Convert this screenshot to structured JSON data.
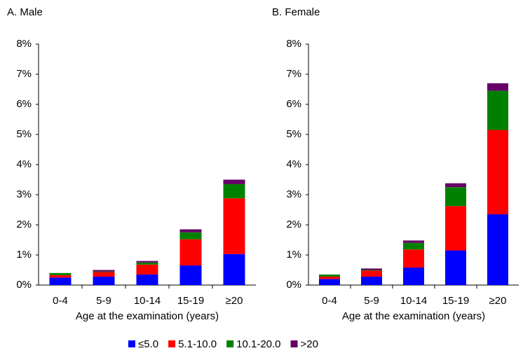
{
  "chart_data": [
    {
      "type": "stacked_bar",
      "title": "A. Male",
      "x_label": "Age at the examination (years)",
      "categories": [
        "0-4",
        "5-9",
        "10-14",
        "15-19",
        "≥20"
      ],
      "series": [
        {
          "values": [
            0.25,
            0.28,
            0.35,
            0.65,
            1.03
          ]
        },
        {
          "values": [
            0.08,
            0.15,
            0.33,
            0.87,
            1.85
          ]
        },
        {
          "values": [
            0.07,
            0.02,
            0.07,
            0.23,
            0.47
          ]
        },
        {
          "values": [
            0,
            0.05,
            0.05,
            0.1,
            0.15
          ]
        }
      ],
      "ylim": [
        0,
        8
      ],
      "yticks": [
        {
          "value": 0,
          "label": "0%"
        },
        {
          "value": 1,
          "label": "1%"
        },
        {
          "value": 2,
          "label": "2%"
        },
        {
          "value": 3,
          "label": "3%"
        },
        {
          "value": 4,
          "label": "4%"
        },
        {
          "value": 5,
          "label": "5%"
        },
        {
          "value": 6,
          "label": "6%"
        },
        {
          "value": 7,
          "label": "7%"
        },
        {
          "value": 8,
          "label": "8%"
        }
      ]
    },
    {
      "type": "stacked_bar",
      "title": "B. Female",
      "x_label": "Age at the examination (years)",
      "categories": [
        "0-4",
        "5-9",
        "10-14",
        "15-19",
        "≥20"
      ],
      "series": [
        {
          "values": [
            0.2,
            0.28,
            0.58,
            1.15,
            2.35
          ]
        },
        {
          "values": [
            0.08,
            0.2,
            0.6,
            1.47,
            2.8
          ]
        },
        {
          "values": [
            0.07,
            0.02,
            0.22,
            0.63,
            1.3
          ]
        },
        {
          "values": [
            0,
            0.05,
            0.08,
            0.13,
            0.25
          ]
        }
      ],
      "ylim": [
        0,
        8
      ],
      "yticks": [
        {
          "value": 0,
          "label": "0%"
        },
        {
          "value": 1,
          "label": "1%"
        },
        {
          "value": 2,
          "label": "2%"
        },
        {
          "value": 3,
          "label": "3%"
        },
        {
          "value": 4,
          "label": "4%"
        },
        {
          "value": 5,
          "label": "5%"
        },
        {
          "value": 6,
          "label": "6%"
        },
        {
          "value": 7,
          "label": "7%"
        },
        {
          "value": 8,
          "label": "8%"
        }
      ]
    }
  ],
  "legend": [
    {
      "name": "≤5.0",
      "color": "#0000ff"
    },
    {
      "name": "5.1-10.0",
      "color": "#ff0000"
    },
    {
      "name": "10.1-20.0",
      "color": "#008000"
    },
    {
      "name": ">20",
      "color": "#660066"
    }
  ]
}
